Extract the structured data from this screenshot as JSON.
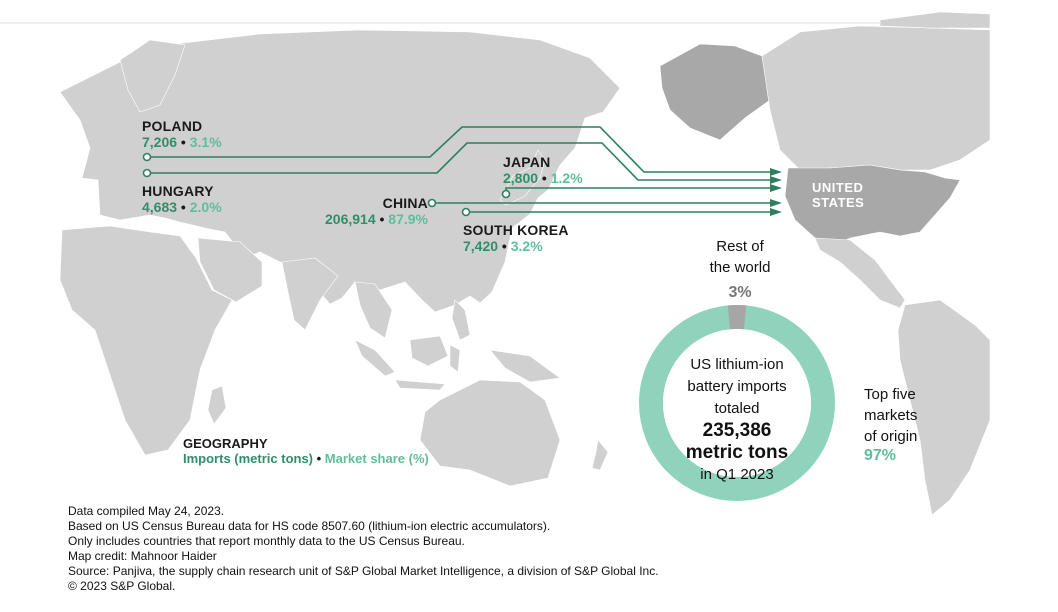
{
  "colors": {
    "land": "#d0d0d0",
    "land_dark": "#a8a8a8",
    "route": "#2f7f5f",
    "import_value": "#2f8f6b",
    "share_value": "#5fbf9a",
    "donut_main": "#8fd3bd",
    "donut_rest": "#a6a6a6"
  },
  "map": {
    "us_label": [
      "UNITED",
      "STATES"
    ]
  },
  "countries": {
    "poland": {
      "name": "POLAND",
      "imports": "7,206",
      "share": "3.1%"
    },
    "hungary": {
      "name": "HUNGARY",
      "imports": "4,683",
      "share": "2.0%"
    },
    "china": {
      "name": "CHINA",
      "imports": "206,914",
      "share": "87.9%"
    },
    "japan": {
      "name": "JAPAN",
      "imports": "2,800",
      "share": "1.2%"
    },
    "south_korea": {
      "name": "SOUTH KOREA",
      "imports": "7,420",
      "share": "3.2%"
    }
  },
  "separator": " • ",
  "donut": {
    "line1": "US lithium-ion",
    "line2": "battery imports",
    "line3": "totaled",
    "big1": "235,386",
    "big2": "metric tons",
    "line4": "in Q1 2023",
    "share_top5": 97,
    "share_rest": 3
  },
  "rest": {
    "line1": "Rest of",
    "line2": "the world",
    "pct": "3%"
  },
  "top5": {
    "line1": "Top five",
    "line2": "markets",
    "line3": "of origin",
    "pct": "97%"
  },
  "legend": {
    "heading": "GEOGRAPHY",
    "imports_label": "Imports (metric tons)",
    "sep": " • ",
    "share_label": "Market share (%)"
  },
  "footer": [
    "Data compiled May 24, 2023.",
    "Based on US Census Bureau data for HS code 8507.60 (lithium-ion electric accumulators).",
    "Only includes countries that report monthly data to the US Census Bureau.",
    "Map credit: Mahnoor Haider",
    "Source: Panjiva, the supply chain research unit of S&P Global Market Intelligence, a division of S&P Global Inc.",
    "© 2023 S&P Global."
  ]
}
